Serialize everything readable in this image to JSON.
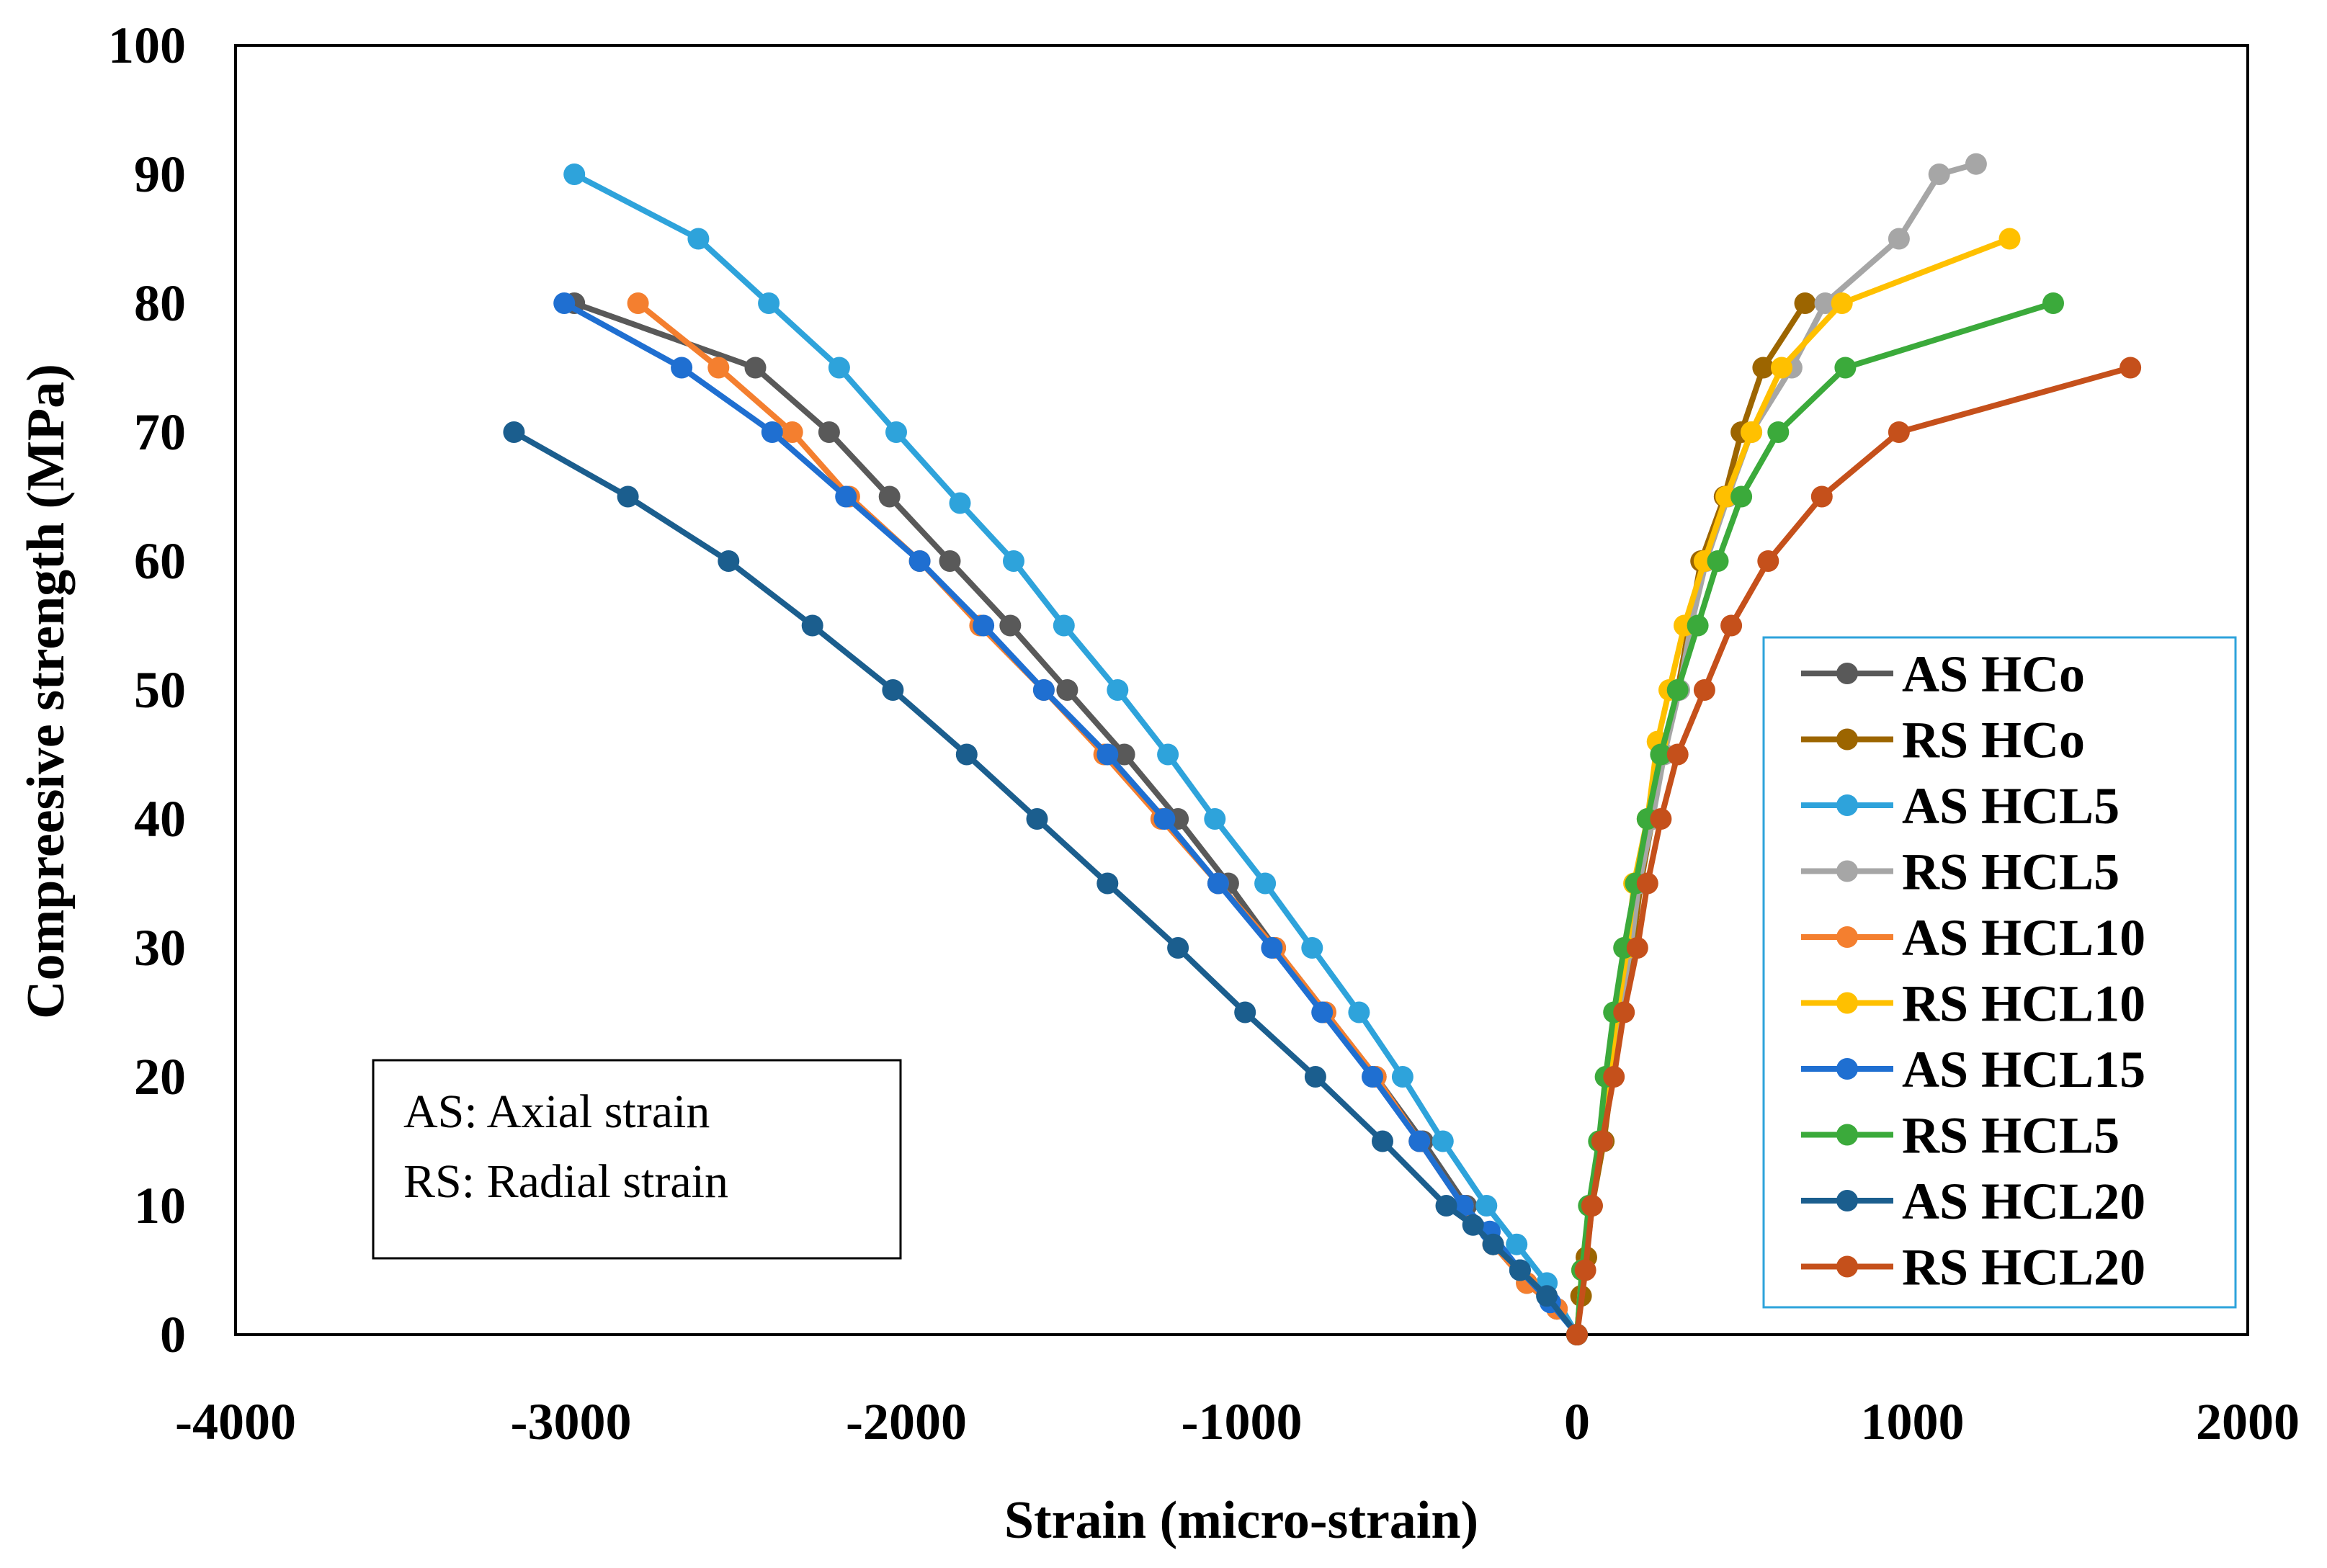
{
  "chart_data": {
    "type": "line",
    "title": "",
    "xlabel": "Strain (micro-strain)",
    "ylabel": "Compreesive strength (MPa)",
    "xlim": [
      -4000,
      2000
    ],
    "ylim": [
      0,
      100
    ],
    "xticks": [
      "-4000",
      "-3000",
      "-2000",
      "-1000",
      "0",
      "1000",
      "2000"
    ],
    "yticks": [
      "0",
      "10",
      "20",
      "30",
      "40",
      "50",
      "60",
      "70",
      "80",
      "90",
      "100"
    ],
    "legend_position": "right",
    "note": [
      "AS: Axial strain",
      "RS: Radial strain"
    ],
    "series": [
      {
        "name": "AS HCo",
        "color": "#595959",
        "points": [
          [
            -2990,
            80
          ],
          [
            -2450,
            75
          ],
          [
            -2230,
            70
          ],
          [
            -2050,
            65
          ],
          [
            -1870,
            60
          ],
          [
            -1690,
            55
          ],
          [
            -1520,
            50
          ],
          [
            -1350,
            45
          ],
          [
            -1190,
            40
          ],
          [
            -1040,
            35
          ],
          [
            -900,
            30
          ],
          [
            -750,
            25
          ],
          [
            -600,
            20
          ],
          [
            -460,
            15
          ],
          [
            -330,
            10
          ],
          [
            -250,
            7
          ],
          [
            -150,
            4
          ],
          [
            -60,
            2
          ],
          [
            0,
            0
          ]
        ]
      },
      {
        "name": "RS HCo",
        "color": "#9C6500",
        "points": [
          [
            0,
            0
          ],
          [
            12,
            3
          ],
          [
            28,
            6
          ],
          [
            45,
            10
          ],
          [
            80,
            15
          ],
          [
            105,
            20
          ],
          [
            130,
            25
          ],
          [
            165,
            30
          ],
          [
            190,
            35
          ],
          [
            225,
            40
          ],
          [
            255,
            45
          ],
          [
            300,
            50
          ],
          [
            335,
            55
          ],
          [
            370,
            60
          ],
          [
            440,
            65
          ],
          [
            490,
            70
          ],
          [
            555,
            75
          ],
          [
            680,
            80
          ]
        ]
      },
      {
        "name": "AS HCL5",
        "color": "#2EA3DB",
        "points": [
          [
            -2990,
            90
          ],
          [
            -2620,
            85
          ],
          [
            -2410,
            80
          ],
          [
            -2200,
            75
          ],
          [
            -2030,
            70
          ],
          [
            -1840,
            64.5
          ],
          [
            -1680,
            60
          ],
          [
            -1530,
            55
          ],
          [
            -1370,
            50
          ],
          [
            -1220,
            45
          ],
          [
            -1080,
            40
          ],
          [
            -930,
            35
          ],
          [
            -790,
            30
          ],
          [
            -650,
            25
          ],
          [
            -520,
            20
          ],
          [
            -400,
            15
          ],
          [
            -270,
            10
          ],
          [
            -180,
            7
          ],
          [
            -90,
            4
          ],
          [
            0,
            0
          ]
        ]
      },
      {
        "name": "RS HCL5",
        "color": "#A6A6A6",
        "points": [
          [
            0,
            0
          ],
          [
            15,
            5
          ],
          [
            40,
            10
          ],
          [
            75,
            15
          ],
          [
            100,
            20
          ],
          [
            125,
            25
          ],
          [
            160,
            30
          ],
          [
            185,
            35
          ],
          [
            225,
            40
          ],
          [
            260,
            45
          ],
          [
            305,
            50
          ],
          [
            340,
            55
          ],
          [
            385,
            60
          ],
          [
            450,
            65
          ],
          [
            520,
            70
          ],
          [
            640,
            75
          ],
          [
            740,
            80
          ],
          [
            960,
            85
          ],
          [
            1080,
            90
          ],
          [
            1190,
            90.8
          ]
        ]
      },
      {
        "name": "AS HCL10",
        "color": "#F47F2F",
        "points": [
          [
            -2800,
            80
          ],
          [
            -2560,
            75
          ],
          [
            -2340,
            70
          ],
          [
            -2170,
            65
          ],
          [
            -1960,
            60
          ],
          [
            -1780,
            55
          ],
          [
            -1590,
            50
          ],
          [
            -1410,
            45
          ],
          [
            -1240,
            40
          ],
          [
            -1070,
            35
          ],
          [
            -900,
            30
          ],
          [
            -750,
            25
          ],
          [
            -600,
            20
          ],
          [
            -470,
            15
          ],
          [
            -340,
            10
          ],
          [
            -250,
            7
          ],
          [
            -150,
            4
          ],
          [
            -60,
            2
          ],
          [
            0,
            0
          ]
        ]
      },
      {
        "name": "RS HCL10",
        "color": "#FFC000",
        "points": [
          [
            0,
            0
          ],
          [
            15,
            5
          ],
          [
            40,
            10
          ],
          [
            70,
            15
          ],
          [
            95,
            20
          ],
          [
            120,
            25
          ],
          [
            150,
            30
          ],
          [
            170,
            35
          ],
          [
            210,
            40
          ],
          [
            240,
            46
          ],
          [
            275,
            50
          ],
          [
            320,
            55
          ],
          [
            380,
            60
          ],
          [
            445,
            65
          ],
          [
            520,
            70
          ],
          [
            610,
            75
          ],
          [
            790,
            80
          ],
          [
            1290,
            85
          ]
        ]
      },
      {
        "name": "AS HCL15",
        "color": "#1F6FD1",
        "points": [
          [
            -3020,
            80
          ],
          [
            -2670,
            75
          ],
          [
            -2400,
            70
          ],
          [
            -2180,
            65
          ],
          [
            -1960,
            60
          ],
          [
            -1770,
            55
          ],
          [
            -1590,
            50
          ],
          [
            -1400,
            45
          ],
          [
            -1230,
            40
          ],
          [
            -1070,
            35
          ],
          [
            -910,
            30
          ],
          [
            -760,
            25
          ],
          [
            -610,
            20
          ],
          [
            -470,
            15
          ],
          [
            -340,
            10
          ],
          [
            -260,
            8
          ],
          [
            -170,
            5
          ],
          [
            -80,
            2.5
          ],
          [
            0,
            0
          ]
        ]
      },
      {
        "name": "RS HCL5",
        "color": "#3BAA3B",
        "points": [
          [
            0,
            0
          ],
          [
            15,
            5
          ],
          [
            35,
            10
          ],
          [
            65,
            15
          ],
          [
            85,
            20
          ],
          [
            110,
            25
          ],
          [
            140,
            30
          ],
          [
            175,
            35
          ],
          [
            210,
            40
          ],
          [
            250,
            45
          ],
          [
            300,
            50
          ],
          [
            360,
            55
          ],
          [
            420,
            60
          ],
          [
            490,
            65
          ],
          [
            600,
            70
          ],
          [
            800,
            75
          ],
          [
            1420,
            80
          ]
        ]
      },
      {
        "name": "AS HCL20",
        "color": "#1B5E8E",
        "points": [
          [
            -3170,
            70
          ],
          [
            -2830,
            65
          ],
          [
            -2530,
            60
          ],
          [
            -2280,
            55
          ],
          [
            -2040,
            50
          ],
          [
            -1820,
            45
          ],
          [
            -1610,
            40
          ],
          [
            -1400,
            35
          ],
          [
            -1190,
            30
          ],
          [
            -990,
            25
          ],
          [
            -780,
            20
          ],
          [
            -580,
            15
          ],
          [
            -390,
            10
          ],
          [
            -310,
            8.5
          ],
          [
            -250,
            7
          ],
          [
            -170,
            5
          ],
          [
            -90,
            3
          ],
          [
            0,
            0
          ]
        ]
      },
      {
        "name": "RS HCL20",
        "color": "#C5501B",
        "points": [
          [
            0,
            0
          ],
          [
            25,
            5
          ],
          [
            45,
            10
          ],
          [
            75,
            15
          ],
          [
            110,
            20
          ],
          [
            140,
            25
          ],
          [
            180,
            30
          ],
          [
            210,
            35
          ],
          [
            250,
            40
          ],
          [
            300,
            45
          ],
          [
            380,
            50
          ],
          [
            460,
            55
          ],
          [
            570,
            60
          ],
          [
            730,
            65
          ],
          [
            960,
            70
          ],
          [
            1650,
            75
          ]
        ]
      }
    ]
  }
}
